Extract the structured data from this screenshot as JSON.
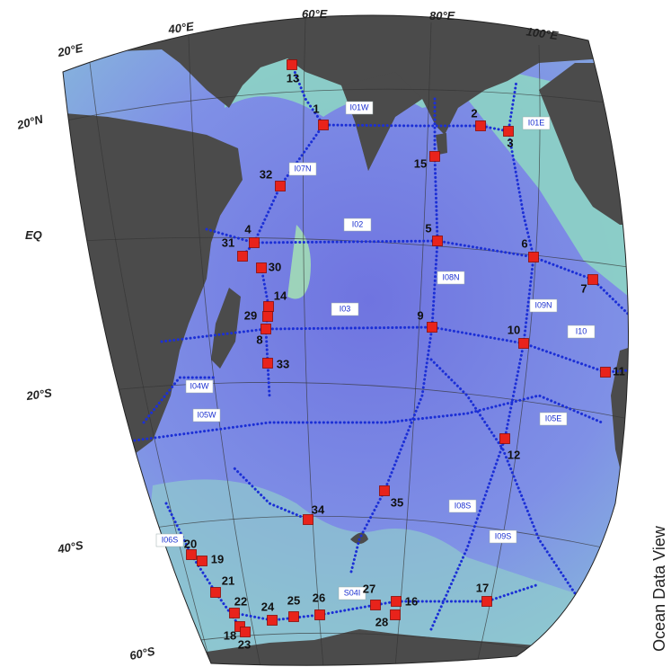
{
  "map": {
    "graticule_labels": [
      "20°E",
      "40°E",
      "60°E",
      "80°E",
      "100°E",
      "20°N",
      "EQ",
      "20°S",
      "40°S",
      "60°S"
    ],
    "stations": [
      "1",
      "2",
      "3",
      "4",
      "5",
      "6",
      "7",
      "8",
      "9",
      "10",
      "11",
      "12",
      "13",
      "14",
      "15",
      "16",
      "17",
      "18",
      "19",
      "20",
      "21",
      "22",
      "23",
      "24",
      "25",
      "26",
      "27",
      "28",
      "29",
      "30",
      "31",
      "32",
      "33",
      "34",
      "35"
    ],
    "sections": [
      "I01W",
      "I01E",
      "I07N",
      "I02",
      "I08N",
      "I09N",
      "I03",
      "I10",
      "I04W",
      "I05W",
      "I05E",
      "I08S",
      "I06S",
      "I09S",
      "S04I"
    ],
    "credit": "Ocean Data View"
  }
}
